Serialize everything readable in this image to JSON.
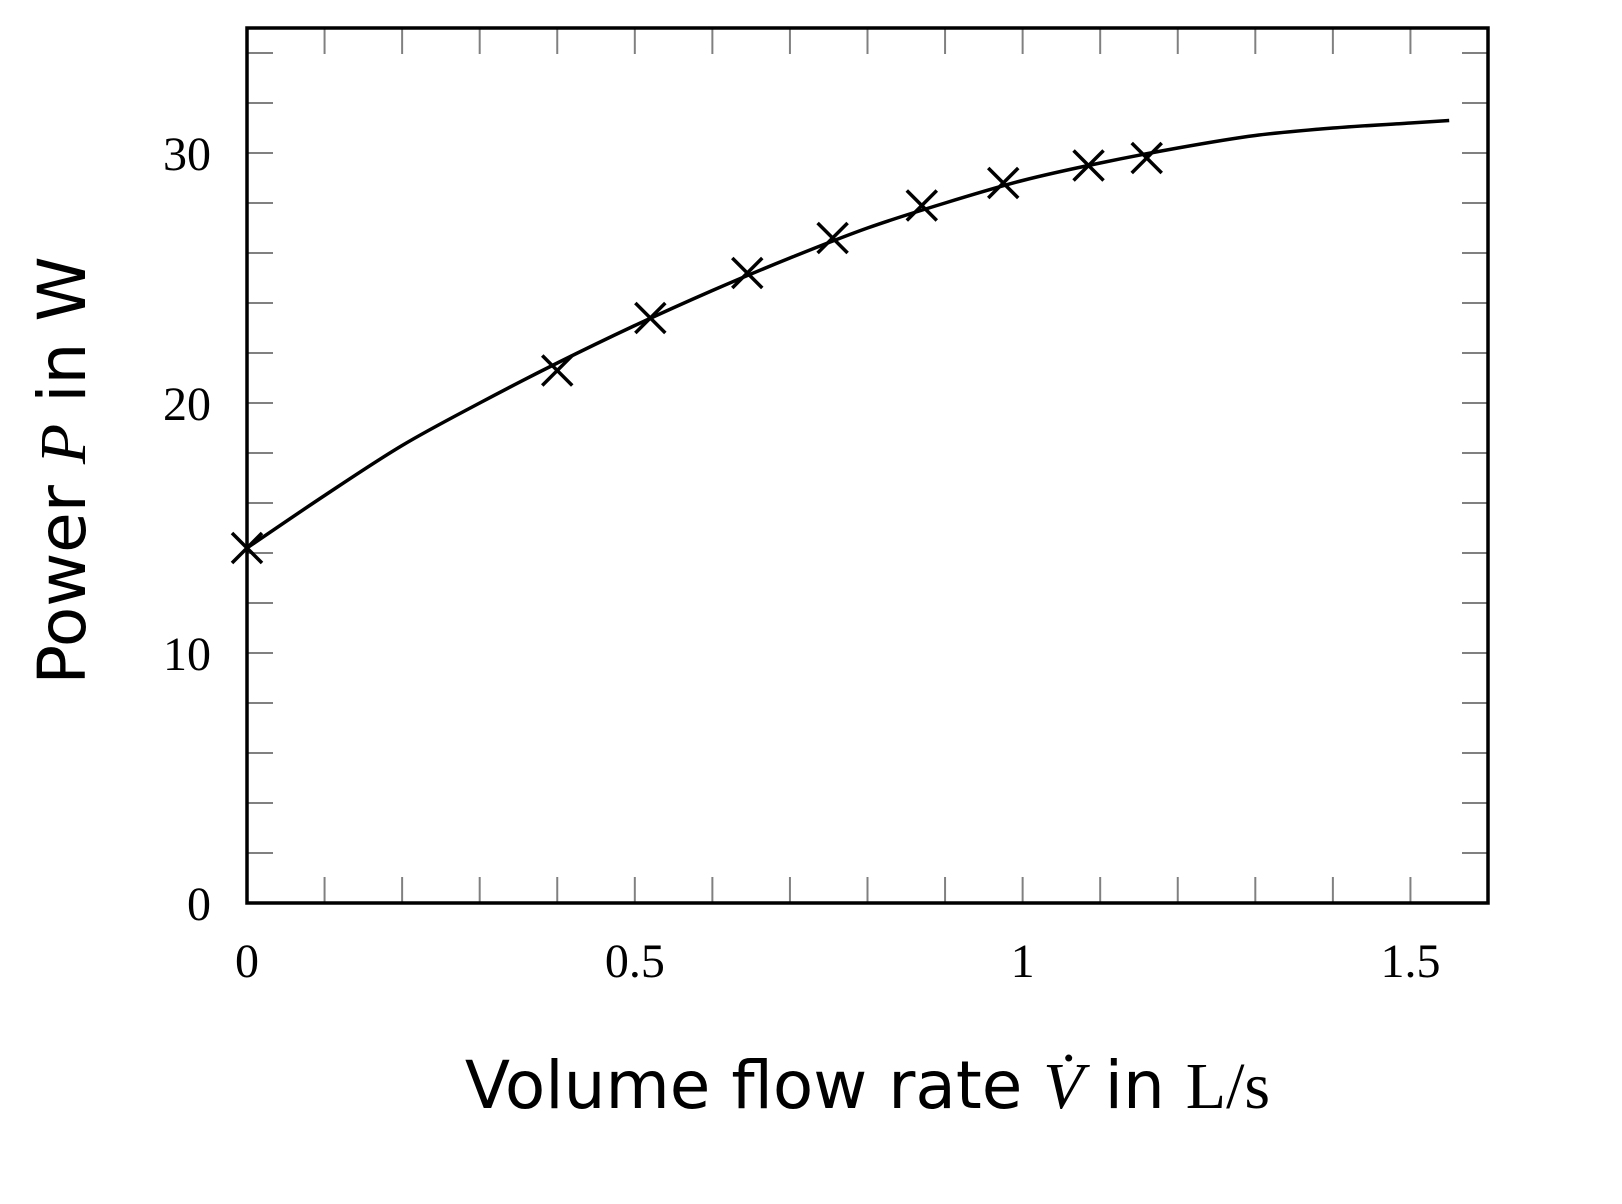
{
  "chart_data": {
    "type": "scatter",
    "xlabel": {
      "prefix": "Volume flow rate ",
      "symbol": "V̇",
      "mid": " in ",
      "unit": "L/s"
    },
    "ylabel": {
      "prefix": "Power ",
      "symbol": "P",
      "mid": " in ",
      "unit": "W"
    },
    "xlim": [
      0,
      1.6
    ],
    "ylim": [
      0,
      35
    ],
    "x_ticks": [
      0,
      0.5,
      1,
      1.5
    ],
    "x_tick_labels": [
      "0",
      "0.5",
      "1",
      "1.5"
    ],
    "y_ticks": [
      0,
      10,
      20,
      30
    ],
    "y_tick_labels": [
      "0",
      "10",
      "20",
      "30"
    ],
    "x_minor_step": 0.1,
    "y_minor_step": 2,
    "grid": false,
    "series": [
      {
        "kind": "measurements",
        "marker": "x",
        "x": [
          0,
          0.4,
          0.52,
          0.645,
          0.755,
          0.87,
          0.975,
          1.085,
          1.16
        ],
        "y": [
          14.2,
          21.3,
          23.4,
          25.2,
          26.6,
          27.9,
          28.8,
          29.5,
          29.8
        ]
      },
      {
        "kind": "fit",
        "line": "solid",
        "x": [
          0,
          0.1,
          0.2,
          0.3,
          0.4,
          0.5,
          0.6,
          0.7,
          0.8,
          0.9,
          1.0,
          1.1,
          1.2,
          1.3,
          1.4,
          1.5,
          1.55
        ],
        "y": [
          14.2,
          16.3,
          18.3,
          20.0,
          21.6,
          23.1,
          24.5,
          25.8,
          27.0,
          28.0,
          28.9,
          29.6,
          30.2,
          30.7,
          31.0,
          31.2,
          31.3
        ]
      }
    ],
    "colors": {
      "axis": "#000000",
      "tick": "#808080",
      "data": "#000000"
    }
  }
}
